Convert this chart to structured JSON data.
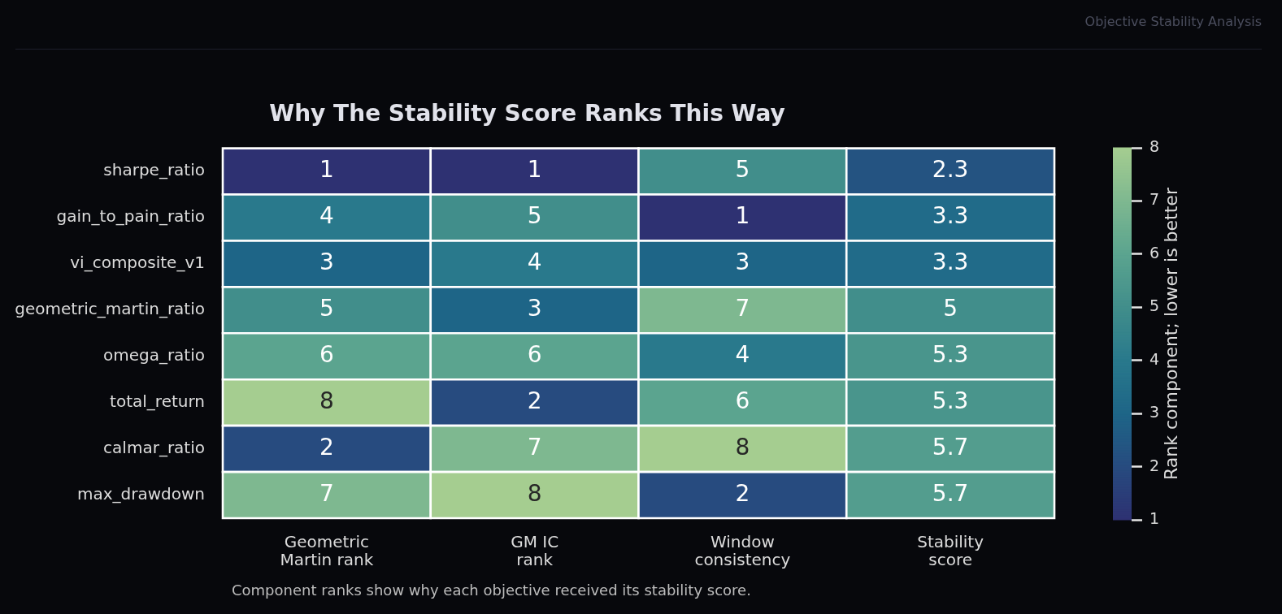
{
  "chart_data": {
    "type": "heatmap",
    "title": "Why The Stability Score Ranks This Way",
    "categories": [
      "Geometric\nMartin rank",
      "GM IC\nrank",
      "Window\nconsistency",
      "Stability\nscore"
    ],
    "y_categories": [
      "sharpe_ratio",
      "gain_to_pain_ratio",
      "vi_composite_v1",
      "geometric_martin_ratio",
      "omega_ratio",
      "total_return",
      "calmar_ratio",
      "max_drawdown"
    ],
    "cells": [
      [
        1,
        1,
        5,
        2.3
      ],
      [
        4,
        5,
        1,
        3.3
      ],
      [
        3,
        4,
        3,
        3.3
      ],
      [
        5,
        3,
        7,
        5
      ],
      [
        6,
        6,
        4,
        5.3
      ],
      [
        8,
        2,
        6,
        5.3
      ],
      [
        2,
        7,
        8,
        5.7
      ],
      [
        7,
        8,
        2,
        5.7
      ]
    ],
    "clim": [
      1,
      8
    ],
    "cticks": [
      1,
      2,
      3,
      4,
      5,
      6,
      7,
      8
    ],
    "clabel": "Rank component; lower is better",
    "data_labels": true,
    "annotations": [
      "Objective Stability Analysis",
      "Component ranks show why each objective received its stability score."
    ]
  }
}
